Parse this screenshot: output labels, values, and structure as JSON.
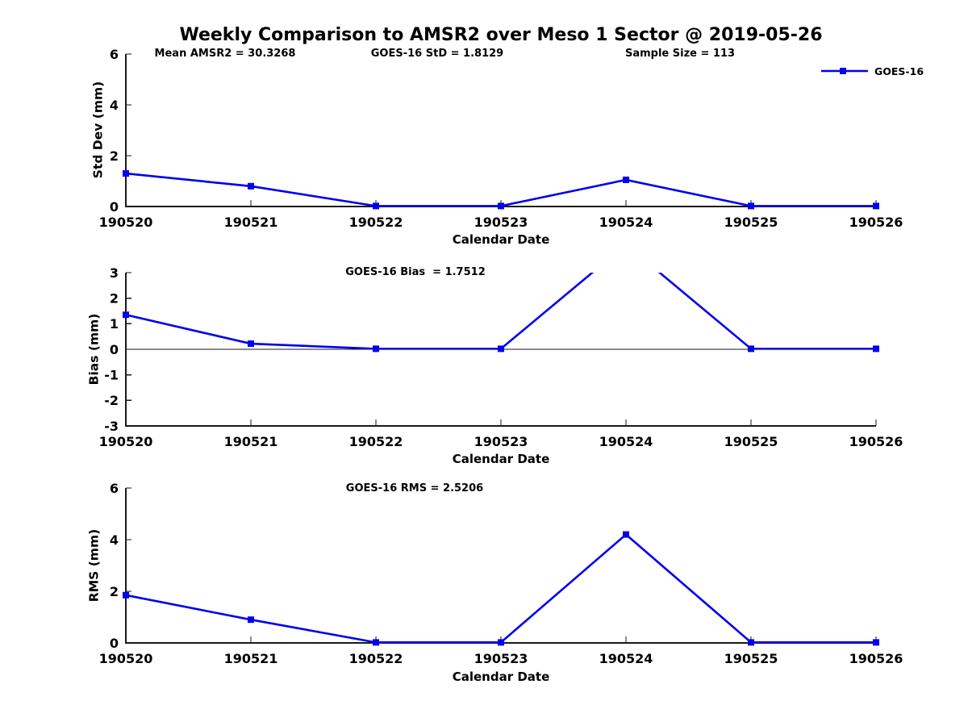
{
  "figure_title": "Weekly Comparison to AMSR2 over Meso 1 Sector @ 2019-05-26",
  "legend": {
    "series_label": "GOES-16"
  },
  "colors": {
    "line": "#0000EE",
    "axis": "#1a1a1a",
    "text": "#000000",
    "background": "#FFFFFF"
  },
  "chart_data": [
    {
      "type": "line",
      "ylabel": "Std Dev (mm)",
      "xlabel": "Calendar Date",
      "categories": [
        "190520",
        "190521",
        "190522",
        "190523",
        "190524",
        "190525",
        "190526"
      ],
      "series": [
        {
          "name": "GOES-16",
          "values": [
            1.3,
            0.8,
            0.02,
            0.02,
            1.05,
            0.02,
            0.02
          ]
        }
      ],
      "ylim": [
        0,
        6
      ],
      "yticks": [
        0,
        2,
        4,
        6
      ],
      "grid": false,
      "marker": "square",
      "legend_position": "top-right",
      "annotations": [
        "Mean AMSR2 = 30.3268",
        "GOES-16 StD = 1.8129",
        "Sample Size = 113"
      ]
    },
    {
      "type": "line",
      "ylabel": "Bias (mm)",
      "xlabel": "Calendar Date",
      "categories": [
        "190520",
        "190521",
        "190522",
        "190523",
        "190524",
        "190525",
        "190526"
      ],
      "series": [
        {
          "name": "GOES-16",
          "values": [
            1.35,
            0.22,
            0.02,
            0.02,
            4.1,
            0.02,
            0.02
          ]
        }
      ],
      "ylim": [
        -3,
        3
      ],
      "yticks": [
        -3,
        -2,
        -1,
        0,
        1,
        2,
        3
      ],
      "grid": false,
      "marker": "square",
      "zero_line": true,
      "annotations": [
        "GOES-16 Bias  = 1.7512"
      ]
    },
    {
      "type": "line",
      "ylabel": "RMS (mm)",
      "xlabel": "Calendar Date",
      "categories": [
        "190520",
        "190521",
        "190522",
        "190523",
        "190524",
        "190525",
        "190526"
      ],
      "series": [
        {
          "name": "GOES-16",
          "values": [
            1.85,
            0.9,
            0.02,
            0.02,
            4.2,
            0.02,
            0.02
          ]
        }
      ],
      "ylim": [
        0,
        6
      ],
      "yticks": [
        0,
        2,
        4,
        6
      ],
      "grid": false,
      "marker": "square",
      "annotations": [
        "GOES-16 RMS = 2.5206"
      ]
    }
  ]
}
